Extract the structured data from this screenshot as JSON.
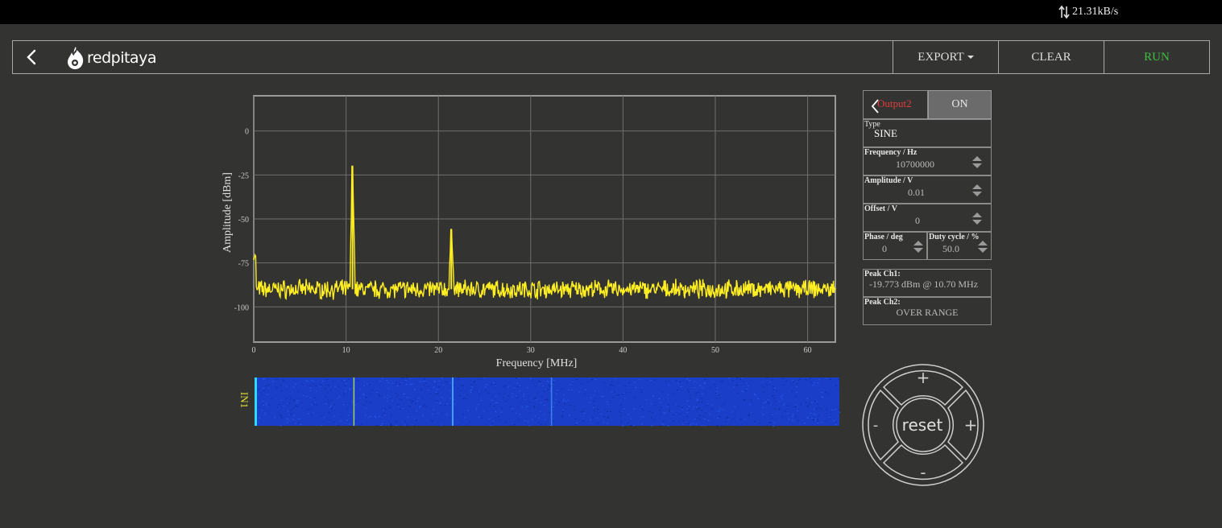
{
  "status": {
    "rate": "21.31kB/s"
  },
  "header": {
    "logo_text": "redpitaya",
    "export_label": "EXPORT",
    "clear_label": "CLEAR",
    "run_label": "RUN",
    "run_color": "#3fbf3f"
  },
  "chart_data": {
    "type": "line",
    "xlabel": "Frequency   [MHz]",
    "ylabel": "Amplitude  [dBm]",
    "xlim": [
      0,
      63
    ],
    "ylim": [
      -120,
      20
    ],
    "xticks": [
      0,
      10,
      20,
      30,
      40,
      50,
      60
    ],
    "yticks": [
      0,
      -25,
      -50,
      -75,
      -100
    ],
    "grid": true,
    "series": [
      {
        "color": "#ffee22",
        "noise_floor": -90,
        "start_value": -72,
        "peaks": [
          {
            "x": 10.7,
            "y": -20
          },
          {
            "x": 21.4,
            "y": -56
          }
        ]
      }
    ]
  },
  "waterfall": {
    "label": "IN1",
    "label_color": "#e5e536",
    "bg_color": "#1a3ec8",
    "lines_mhz": [
      10.7,
      21.4,
      32.1
    ]
  },
  "output": {
    "title": "Output2",
    "title_color": "#e23c3c",
    "toggle_label": "ON",
    "type_label": "Type",
    "type_value": "SINE",
    "frequency_label": "Frequency   / Hz",
    "frequency_value": "10700000",
    "amplitude_label": "Amplitude  / V",
    "amplitude_value": "0.01",
    "offset_label": "Offset  / V",
    "offset_value": "0",
    "phase_label": "Phase   / deg",
    "phase_value": "0",
    "duty_label": "Duty  cycle  / %",
    "duty_value": "50.0"
  },
  "peaks": {
    "ch1_label": "Peak  Ch1:",
    "ch1_value": "-19.773  dBm @ 10.70  MHz",
    "ch2_label": "Peak  Ch2:",
    "ch2_value": "OVER RANGE"
  },
  "dpad": {
    "center": "reset",
    "up": "+",
    "down": "-",
    "left": "-",
    "right": "+"
  }
}
